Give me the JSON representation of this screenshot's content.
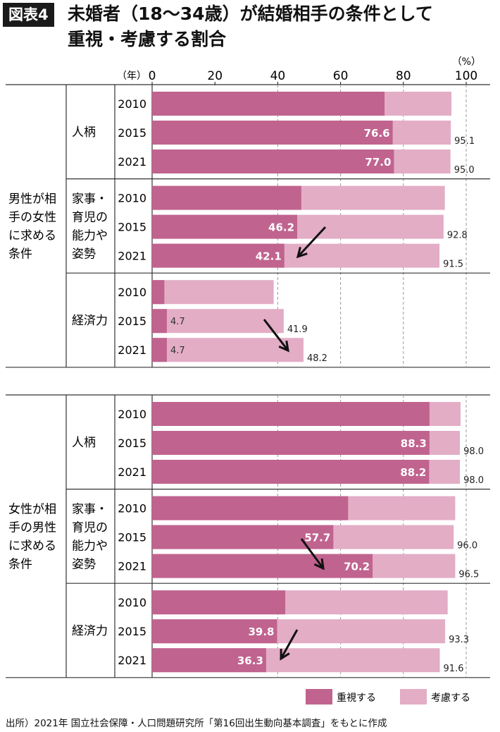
{
  "header": {
    "tag": "図表4",
    "title_line1": "未婚者（18〜34歳）が結婚相手の条件として",
    "title_line2": "重視・考慮する割合"
  },
  "chart_data": {
    "type": "bar",
    "orientation": "horizontal",
    "stacked": true,
    "unit_label": "（%）",
    "year_axis_label": "（年）",
    "xlim": [
      0,
      100
    ],
    "x_ticks": [
      0,
      20,
      40,
      60,
      80,
      100
    ],
    "grid": "dashed vertical at 40, 60, 80, 100",
    "legend_position": "bottom-right",
    "series": [
      {
        "name": "重視する",
        "color": "#c0638f"
      },
      {
        "name": "考慮する",
        "color": "#e3adc6"
      }
    ],
    "sections": [
      {
        "label": "男性が相手の女性に求める条件",
        "label_lines": [
          "男性が相",
          "手の女性",
          "に求める",
          "条件"
        ],
        "groups": [
          {
            "label_lines": [
              "人柄"
            ],
            "rows": [
              {
                "year": "2010",
                "emphasize": 74.0,
                "total": 95.3,
                "emphasize_label": "",
                "total_label": ""
              },
              {
                "year": "2015",
                "emphasize": 76.6,
                "total": 95.1,
                "emphasize_label": "76.6",
                "total_label": "95.1"
              },
              {
                "year": "2021",
                "emphasize": 77.0,
                "total": 95.0,
                "emphasize_label": "77.0",
                "total_label": "95.0"
              }
            ]
          },
          {
            "label_lines": [
              "家事・",
              "育児の",
              "能力や",
              "姿勢"
            ],
            "rows": [
              {
                "year": "2010",
                "emphasize": 47.5,
                "total": 93.2,
                "emphasize_label": "",
                "total_label": ""
              },
              {
                "year": "2015",
                "emphasize": 46.2,
                "total": 92.8,
                "emphasize_label": "46.2",
                "total_label": "92.8"
              },
              {
                "year": "2021",
                "emphasize": 42.1,
                "total": 91.5,
                "emphasize_label": "42.1",
                "total_label": "91.5"
              }
            ]
          },
          {
            "label_lines": [
              "経済力"
            ],
            "rows": [
              {
                "year": "2010",
                "emphasize": 3.9,
                "total": 38.7,
                "emphasize_label": "",
                "total_label": ""
              },
              {
                "year": "2015",
                "emphasize": 4.7,
                "total": 41.9,
                "emphasize_label": "4.7",
                "total_label": "41.9"
              },
              {
                "year": "2021",
                "emphasize": 4.7,
                "total": 48.2,
                "emphasize_label": "4.7",
                "total_label": "48.2"
              }
            ]
          }
        ]
      },
      {
        "label": "女性が相手の男性に求める条件",
        "label_lines": [
          "女性が相",
          "手の男性",
          "に求める",
          "条件"
        ],
        "groups": [
          {
            "label_lines": [
              "人柄"
            ],
            "rows": [
              {
                "year": "2010",
                "emphasize": 88.3,
                "total": 98.2,
                "emphasize_label": "",
                "total_label": ""
              },
              {
                "year": "2015",
                "emphasize": 88.3,
                "total": 98.0,
                "emphasize_label": "88.3",
                "total_label": "98.0"
              },
              {
                "year": "2021",
                "emphasize": 88.2,
                "total": 98.0,
                "emphasize_label": "88.2",
                "total_label": "98.0"
              }
            ]
          },
          {
            "label_lines": [
              "家事・",
              "育児の",
              "能力や",
              "姿勢"
            ],
            "rows": [
              {
                "year": "2010",
                "emphasize": 62.4,
                "total": 96.5,
                "emphasize_label": "",
                "total_label": ""
              },
              {
                "year": "2015",
                "emphasize": 57.7,
                "total": 96.0,
                "emphasize_label": "57.7",
                "total_label": "96.0"
              },
              {
                "year": "2021",
                "emphasize": 70.2,
                "total": 96.5,
                "emphasize_label": "70.2",
                "total_label": "96.5"
              }
            ]
          },
          {
            "label_lines": [
              "経済力"
            ],
            "rows": [
              {
                "year": "2010",
                "emphasize": 42.4,
                "total": 94.1,
                "emphasize_label": "",
                "total_label": ""
              },
              {
                "year": "2015",
                "emphasize": 39.8,
                "total": 93.3,
                "emphasize_label": "39.8",
                "total_label": "93.3"
              },
              {
                "year": "2021",
                "emphasize": 36.3,
                "total": 91.6,
                "emphasize_label": "36.3",
                "total_label": "91.6"
              }
            ]
          }
        ]
      }
    ],
    "arrows": [
      {
        "section": 0,
        "group": 1,
        "direction": "down-left"
      },
      {
        "section": 0,
        "group": 2,
        "direction": "down-right"
      },
      {
        "section": 1,
        "group": 1,
        "direction": "down-right"
      },
      {
        "section": 1,
        "group": 2,
        "direction": "down-left"
      }
    ]
  },
  "footer": {
    "source": "出所）2021年 国立社会保障・人口問題研究所「第16回出生動向基本調査」をもとに作成"
  }
}
